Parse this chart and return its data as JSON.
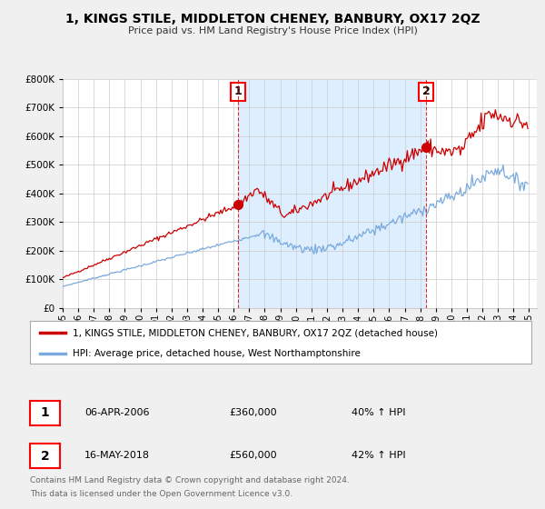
{
  "title": "1, KINGS STILE, MIDDLETON CHENEY, BANBURY, OX17 2QZ",
  "subtitle": "Price paid vs. HM Land Registry's House Price Index (HPI)",
  "background_color": "#f0f0f0",
  "plot_bg_color": "#ffffff",
  "shade_color": "#ddeeff",
  "red_color": "#cc0000",
  "blue_color": "#7aaadd",
  "grid_color": "#cccccc",
  "marker1": {
    "label": "1",
    "date": "06-APR-2006",
    "price": 360000,
    "pct": "40% ↑ HPI",
    "x_year": 2006.27
  },
  "marker2": {
    "label": "2",
    "date": "16-MAY-2018",
    "price": 560000,
    "pct": "42% ↑ HPI",
    "x_year": 2018.38
  },
  "legend_line1": "1, KINGS STILE, MIDDLETON CHENEY, BANBURY, OX17 2QZ (detached house)",
  "legend_line2": "HPI: Average price, detached house, West Northamptonshire",
  "footer1": "Contains HM Land Registry data © Crown copyright and database right 2024.",
  "footer2": "This data is licensed under the Open Government Licence v3.0.",
  "ylim": [
    0,
    800000
  ],
  "xlim_start": 1995.0,
  "xlim_end": 2025.5
}
